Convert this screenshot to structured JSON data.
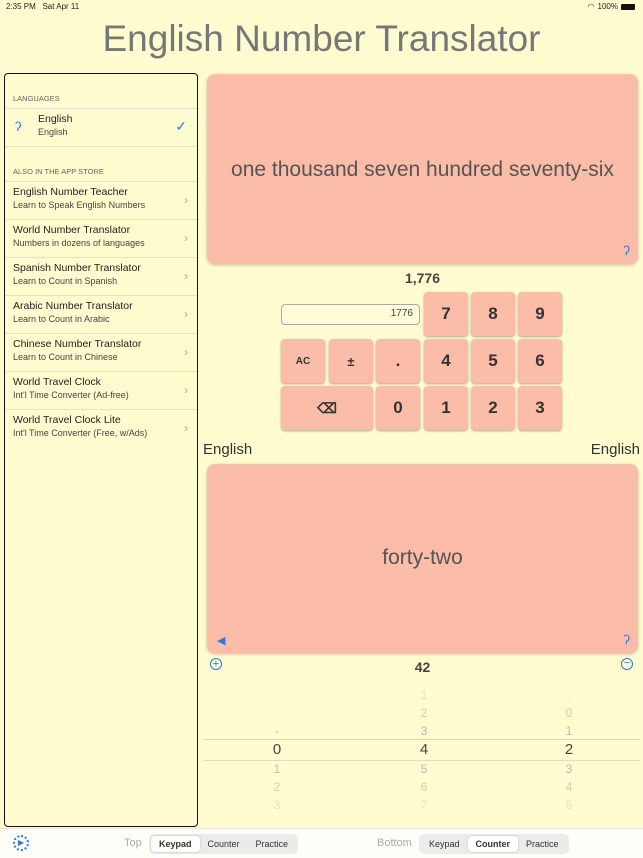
{
  "status": {
    "time": "2:35 PM",
    "date": "Sat Apr 11",
    "battery": "100%"
  },
  "title": "English Number Translator",
  "sidebar": {
    "languages_header": "LANGUAGES",
    "language": {
      "title": "English",
      "subtitle": "English"
    },
    "store_header": "ALSO IN THE APP STORE",
    "apps": [
      {
        "title": "English Number Teacher",
        "subtitle": "Learn to Speak English Numbers"
      },
      {
        "title": "World Number Translator",
        "subtitle": "Numbers in dozens of languages"
      },
      {
        "title": "Spanish Number Translator",
        "subtitle": "Learn to Count in Spanish"
      },
      {
        "title": "Arabic Number Translator",
        "subtitle": "Learn to Count in Arabic"
      },
      {
        "title": "Chinese Number Translator",
        "subtitle": "Learn to Count in Chinese"
      },
      {
        "title": "World Travel Clock",
        "subtitle": "Int'l Time Converter (Ad-free)"
      },
      {
        "title": "World Travel Clock Lite",
        "subtitle": "Int'l Time Converter (Free, w/Ads)"
      }
    ]
  },
  "top": {
    "words": "one thousand seven hundred seventy-six",
    "number": "1,776",
    "input": "1776"
  },
  "keys": {
    "k7": "7",
    "k8": "8",
    "k9": "9",
    "ac": "AC",
    "pm": "±",
    "dot": ".",
    "k4": "4",
    "k5": "5",
    "k6": "6",
    "back": "⌫",
    "k0": "0",
    "k1": "1",
    "k2": "2",
    "k3": "3"
  },
  "lang_left": "English",
  "lang_right": "English",
  "bottom": {
    "words": "forty-two",
    "number": "42"
  },
  "picker": {
    "col1": [
      "",
      "",
      "-",
      "0",
      "1",
      "2",
      "3"
    ],
    "col2": [
      "1",
      "2",
      "3",
      "4",
      "5",
      "6",
      "7"
    ],
    "col3": [
      "-",
      "0",
      "1",
      "2",
      "3",
      "4",
      "5"
    ]
  },
  "toolbar": {
    "top_label": "Top",
    "bottom_label": "Bottom",
    "segments": [
      "Keypad",
      "Counter",
      "Practice"
    ]
  }
}
